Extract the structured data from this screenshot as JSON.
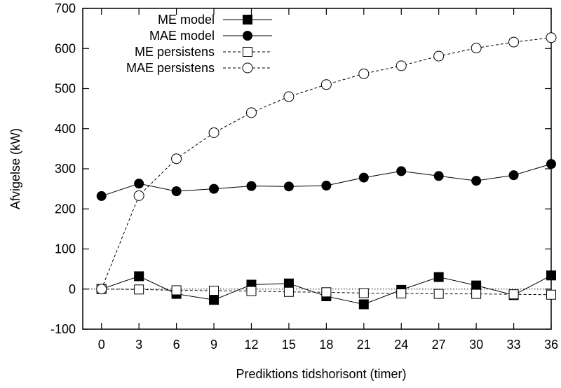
{
  "chart_data": {
    "type": "line",
    "title": "",
    "xlabel": "Prediktions tidshorisont (timer)",
    "ylabel": "Afvigelse (kW)",
    "x": [
      0,
      3,
      6,
      9,
      12,
      15,
      18,
      21,
      24,
      27,
      30,
      33,
      36
    ],
    "xlim": [
      -1.5,
      36
    ],
    "ylim": [
      -100,
      700
    ],
    "xticks": [
      0,
      3,
      6,
      9,
      12,
      15,
      18,
      21,
      24,
      27,
      30,
      33,
      36
    ],
    "yticks": [
      -100,
      0,
      100,
      200,
      300,
      400,
      500,
      600,
      700
    ],
    "grid": false,
    "legend_position": "top-left",
    "zero_line": true,
    "series": [
      {
        "name": "ME model",
        "marker": "filled-square",
        "line": "solid",
        "values": [
          0,
          32,
          -12,
          -27,
          11,
          14,
          -18,
          -38,
          -2,
          30,
          9,
          -15,
          34
        ]
      },
      {
        "name": "MAE model",
        "marker": "filled-circle",
        "line": "solid",
        "values": [
          232,
          263,
          244,
          250,
          257,
          256,
          258,
          278,
          294,
          282,
          270,
          284,
          312
        ]
      },
      {
        "name": "ME persistens",
        "marker": "open-square",
        "line": "dashed",
        "values": [
          0,
          -1,
          -3,
          -4,
          -5,
          -7,
          -8,
          -10,
          -11,
          -12,
          -12,
          -13,
          -14
        ]
      },
      {
        "name": "MAE persistens",
        "marker": "open-circle",
        "line": "dashed",
        "values": [
          0,
          233,
          325,
          390,
          440,
          480,
          510,
          537,
          557,
          581,
          601,
          616,
          627
        ]
      }
    ]
  }
}
